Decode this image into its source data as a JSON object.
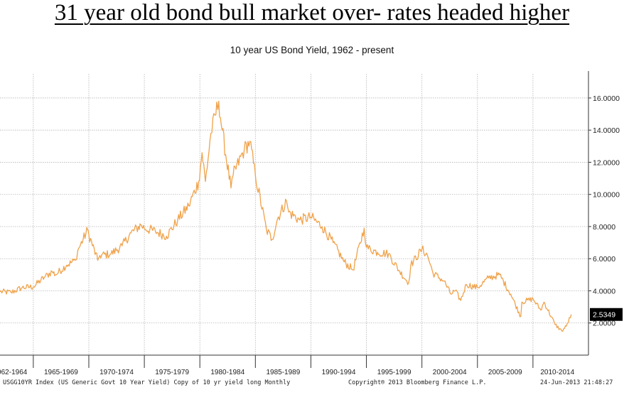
{
  "headline": "31 year old bond bull market over- rates headed higher",
  "chart_data": {
    "type": "line",
    "title": "10 year US Bond Yield, 1962 - present",
    "xlabel": "",
    "ylabel": "",
    "xlim": [
      1962.0,
      2015.0
    ],
    "ylim": [
      0,
      17.5
    ],
    "grid": true,
    "y_ticks": [
      "2.0000",
      "4.0000",
      "6.0000",
      "8.0000",
      "10.0000",
      "12.0000",
      "14.0000",
      "16.0000"
    ],
    "x_ticks": [
      "962-1964",
      "1965-1969",
      "1970-1974",
      "1975-1979",
      "1980-1984",
      "1985-1989",
      "1990-1994",
      "1995-1999",
      "2000-2004",
      "2005-2009",
      "2010-2014"
    ],
    "last_value_label": "2.5349",
    "series": [
      {
        "color": "#f0a24a",
        "x": [
          1962,
          1963,
          1964,
          1965,
          1966,
          1966.7,
          1967,
          1968,
          1968.8,
          1969,
          1969.9,
          1970,
          1970.8,
          1971,
          1972,
          1973,
          1973.8,
          1974.7,
          1975,
          1976,
          1977,
          1978,
          1979,
          1979.9,
          1980.2,
          1980.5,
          1981,
          1981.7,
          1982,
          1982.8,
          1983,
          1984,
          1984.5,
          1985,
          1986,
          1986.5,
          1987,
          1987.8,
          1988,
          1989,
          1990,
          1991,
          1992,
          1993,
          1993.8,
          1994.8,
          1995,
          1996,
          1997,
          1998,
          1998.8,
          1999,
          2000,
          2000.5,
          2001,
          2002,
          2002.6,
          2003,
          2003.5,
          2004,
          2005,
          2006,
          2007,
          2008,
          2008.9,
          2009,
          2010,
          2010.7,
          2011,
          2012,
          2012.6,
          2013,
          2013.45
        ],
        "y": [
          3.95,
          3.9,
          4.2,
          4.25,
          4.85,
          5.2,
          5.0,
          5.6,
          5.9,
          6.5,
          7.8,
          7.5,
          5.9,
          6.2,
          6.3,
          6.8,
          7.6,
          8.1,
          7.9,
          7.7,
          7.4,
          8.4,
          9.3,
          10.8,
          12.6,
          10.8,
          13.8,
          15.8,
          14.0,
          10.4,
          11.2,
          12.8,
          13.3,
          11.2,
          7.8,
          7.2,
          8.5,
          9.6,
          8.9,
          8.4,
          8.6,
          8.0,
          7.0,
          5.8,
          5.3,
          7.9,
          6.7,
          6.4,
          6.3,
          5.2,
          4.5,
          5.6,
          6.6,
          6.2,
          5.1,
          4.6,
          3.8,
          4.0,
          3.4,
          4.4,
          4.2,
          4.8,
          5.0,
          3.8,
          2.4,
          3.3,
          3.5,
          2.8,
          3.3,
          1.9,
          1.5,
          1.8,
          2.53
        ]
      }
    ]
  },
  "footer": {
    "left": "USGG10YR Index (US Generic Govt 10 Year Yield) Copy of 10 yr yield long  Monthly",
    "middle": "Copyright® 2013 Bloomberg Finance L.P.",
    "right": "24-Jun-2013 21:48:27"
  }
}
